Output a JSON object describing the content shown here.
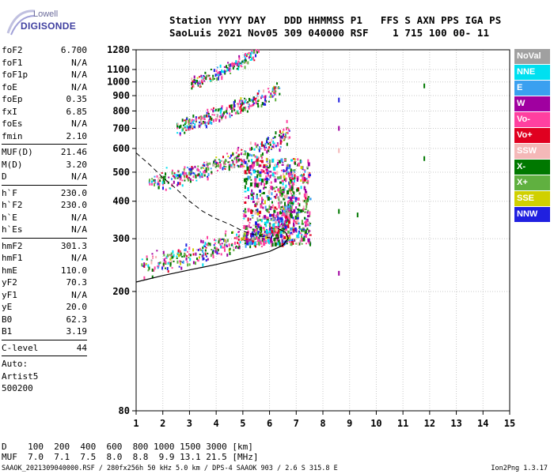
{
  "logo": {
    "brand_top": "Lowell",
    "brand_bottom": "DIGISONDE"
  },
  "header": {
    "line1": "Station YYYY DAY   DDD HHMMSS P1   FFS S AXN PPS IGA PS",
    "line2": "SaoLuis 2021 Nov05 309 040000 RSF    1 715 100 00- 11"
  },
  "params": [
    {
      "label": "foF2",
      "value": "6.700"
    },
    {
      "label": "foF1",
      "value": "N/A"
    },
    {
      "label": "foF1p",
      "value": "N/A"
    },
    {
      "label": "foE",
      "value": "N/A"
    },
    {
      "label": "foEp",
      "value": "0.35"
    },
    {
      "label": "fxI",
      "value": "6.85"
    },
    {
      "label": "foEs",
      "value": "N/A"
    },
    {
      "label": "fmin",
      "value": "2.10"
    },
    {
      "sep": true
    },
    {
      "label": "MUF(D)",
      "value": "21.46"
    },
    {
      "label": "M(D)",
      "value": "3.20"
    },
    {
      "label": "D",
      "value": "N/A"
    },
    {
      "sep": true
    },
    {
      "label": "h`F",
      "value": "230.0"
    },
    {
      "label": "h`F2",
      "value": "230.0"
    },
    {
      "label": "h`E",
      "value": "N/A"
    },
    {
      "label": "h`Es",
      "value": "N/A"
    },
    {
      "sep": true
    },
    {
      "label": "hmF2",
      "value": "301.3"
    },
    {
      "label": "hmF1",
      "value": "N/A"
    },
    {
      "label": "hmE",
      "value": "110.0"
    },
    {
      "label": "yF2",
      "value": "70.3"
    },
    {
      "label": "yF1",
      "value": "N/A"
    },
    {
      "label": "yE",
      "value": "20.0"
    },
    {
      "label": "B0",
      "value": "62.3"
    },
    {
      "label": "B1",
      "value": "3.19"
    },
    {
      "sep": true
    },
    {
      "label": "C-level",
      "value": "44"
    },
    {
      "sep": true
    }
  ],
  "autoscaling": {
    "line1": "Auto:",
    "line2": "Artist5",
    "line3": "500200"
  },
  "legend": [
    {
      "label": "NoVal",
      "color": "#a0a0a0"
    },
    {
      "label": "NNE",
      "color": "#00e0f0"
    },
    {
      "label": "E",
      "color": "#3aa0f0"
    },
    {
      "label": "W",
      "color": "#a000a0"
    },
    {
      "label": "Vo-",
      "color": "#ff40a0"
    },
    {
      "label": "Vo+",
      "color": "#e00020"
    },
    {
      "label": "SSW",
      "color": "#f4b8b8"
    },
    {
      "label": "X-",
      "color": "#007800"
    },
    {
      "label": "X+",
      "color": "#60b040"
    },
    {
      "label": "SSE",
      "color": "#d0d000"
    },
    {
      "label": "NNW",
      "color": "#2020e0"
    }
  ],
  "muf_table": {
    "line1": "D    100  200  400  600  800 1000 1500 3000 [km]",
    "line2": "MUF  7.0  7.1  7.5  8.0  8.8  9.9 13.1 21.5 [MHz]"
  },
  "footer": {
    "left": "SAAOK_2021309040000.RSF / 280fx256h 50 kHz 5.0 km / DPS-4 SAAOK 903 / 2.6 S 315.8 E",
    "right": "Ion2Png 1.3.17"
  },
  "chart_data": {
    "type": "scatter",
    "title": "",
    "xlabel": "",
    "ylabel": "",
    "xlim": [
      1,
      15
    ],
    "ylim": [
      80,
      1280
    ],
    "y_scale": "log",
    "x_ticks": [
      "1",
      "2",
      "3",
      "4",
      "5",
      "6",
      "7",
      "8",
      "9",
      "10",
      "11",
      "12",
      "13",
      "14",
      "15"
    ],
    "y_ticks": [
      {
        "v": 80,
        "label": "80"
      },
      {
        "v": 200,
        "label": "200"
      },
      {
        "v": 300,
        "label": "300"
      },
      {
        "v": 400,
        "label": "400"
      },
      {
        "v": 500,
        "label": "500"
      },
      {
        "v": 600,
        "label": "600"
      },
      {
        "v": 700,
        "label": "700"
      },
      {
        "v": 800,
        "label": "800"
      },
      {
        "v": 900,
        "label": "900"
      },
      {
        "v": 1000,
        "label": "1000"
      },
      {
        "v": 1100,
        "label": "1100"
      },
      {
        "v": 1280,
        "label": "1280"
      }
    ],
    "grid": true,
    "echo_traces": [
      {
        "name": "F2 first hop",
        "points": [
          [
            1.2,
            235
          ],
          [
            2,
            244
          ],
          [
            2.5,
            250
          ],
          [
            3,
            257
          ],
          [
            3.5,
            264
          ],
          [
            4,
            272
          ],
          [
            4.5,
            282
          ],
          [
            5,
            290
          ],
          [
            5.5,
            298
          ],
          [
            6,
            308
          ],
          [
            6.3,
            318
          ],
          [
            6.5,
            332
          ],
          [
            6.7,
            360
          ],
          [
            6.8,
            410
          ],
          [
            6.85,
            470
          ]
        ]
      },
      {
        "name": "F2 second hop",
        "points": [
          [
            1.5,
            455
          ],
          [
            2,
            462
          ],
          [
            2.5,
            470
          ],
          [
            3,
            480
          ],
          [
            3.5,
            495
          ],
          [
            4,
            512
          ],
          [
            4.5,
            530
          ],
          [
            5,
            550
          ],
          [
            5.5,
            575
          ],
          [
            6,
            600
          ],
          [
            6.4,
            630
          ],
          [
            6.7,
            680
          ]
        ]
      },
      {
        "name": "F2 third hop",
        "points": [
          [
            2.5,
            690
          ],
          [
            3,
            710
          ],
          [
            3.5,
            735
          ],
          [
            4,
            765
          ],
          [
            4.5,
            795
          ],
          [
            5,
            825
          ],
          [
            5.5,
            855
          ],
          [
            6,
            890
          ],
          [
            6.3,
            920
          ]
        ]
      },
      {
        "name": "F2 fourth hop",
        "points": [
          [
            3,
            960
          ],
          [
            3.5,
            1000
          ],
          [
            4,
            1050
          ],
          [
            4.5,
            1100
          ],
          [
            5,
            1160
          ],
          [
            5.5,
            1230
          ]
        ]
      }
    ],
    "scatter_cluster": {
      "x_range": [
        5,
        7.5
      ],
      "y_range": [
        290,
        560
      ]
    },
    "profile_curve": [
      [
        1,
        215
      ],
      [
        2,
        226
      ],
      [
        3,
        236
      ],
      [
        4,
        246
      ],
      [
        5,
        258
      ],
      [
        6,
        272
      ],
      [
        6.5,
        285
      ],
      [
        6.7,
        301
      ],
      [
        6.6,
        315
      ],
      [
        6.3,
        325
      ]
    ],
    "dashed_curve": [
      [
        1,
        580
      ],
      [
        1.5,
        530
      ],
      [
        2,
        480
      ],
      [
        2.5,
        440
      ],
      [
        3,
        400
      ],
      [
        3.5,
        370
      ],
      [
        4,
        350
      ],
      [
        4.5,
        335
      ],
      [
        5,
        318
      ],
      [
        5.5,
        308
      ],
      [
        6,
        302
      ],
      [
        6.5,
        301
      ]
    ],
    "isolated_points": [
      {
        "x": 8.6,
        "y": 870,
        "color": "#2020e0"
      },
      {
        "x": 8.6,
        "y": 700,
        "color": "#a000a0"
      },
      {
        "x": 8.6,
        "y": 590,
        "color": "#f4b8b8"
      },
      {
        "x": 8.6,
        "y": 370,
        "color": "#007800"
      },
      {
        "x": 8.6,
        "y": 230,
        "color": "#a000a0"
      },
      {
        "x": 9.3,
        "y": 360,
        "color": "#007800"
      },
      {
        "x": 11.8,
        "y": 970,
        "color": "#007800"
      },
      {
        "x": 11.8,
        "y": 555,
        "color": "#007800"
      }
    ]
  }
}
